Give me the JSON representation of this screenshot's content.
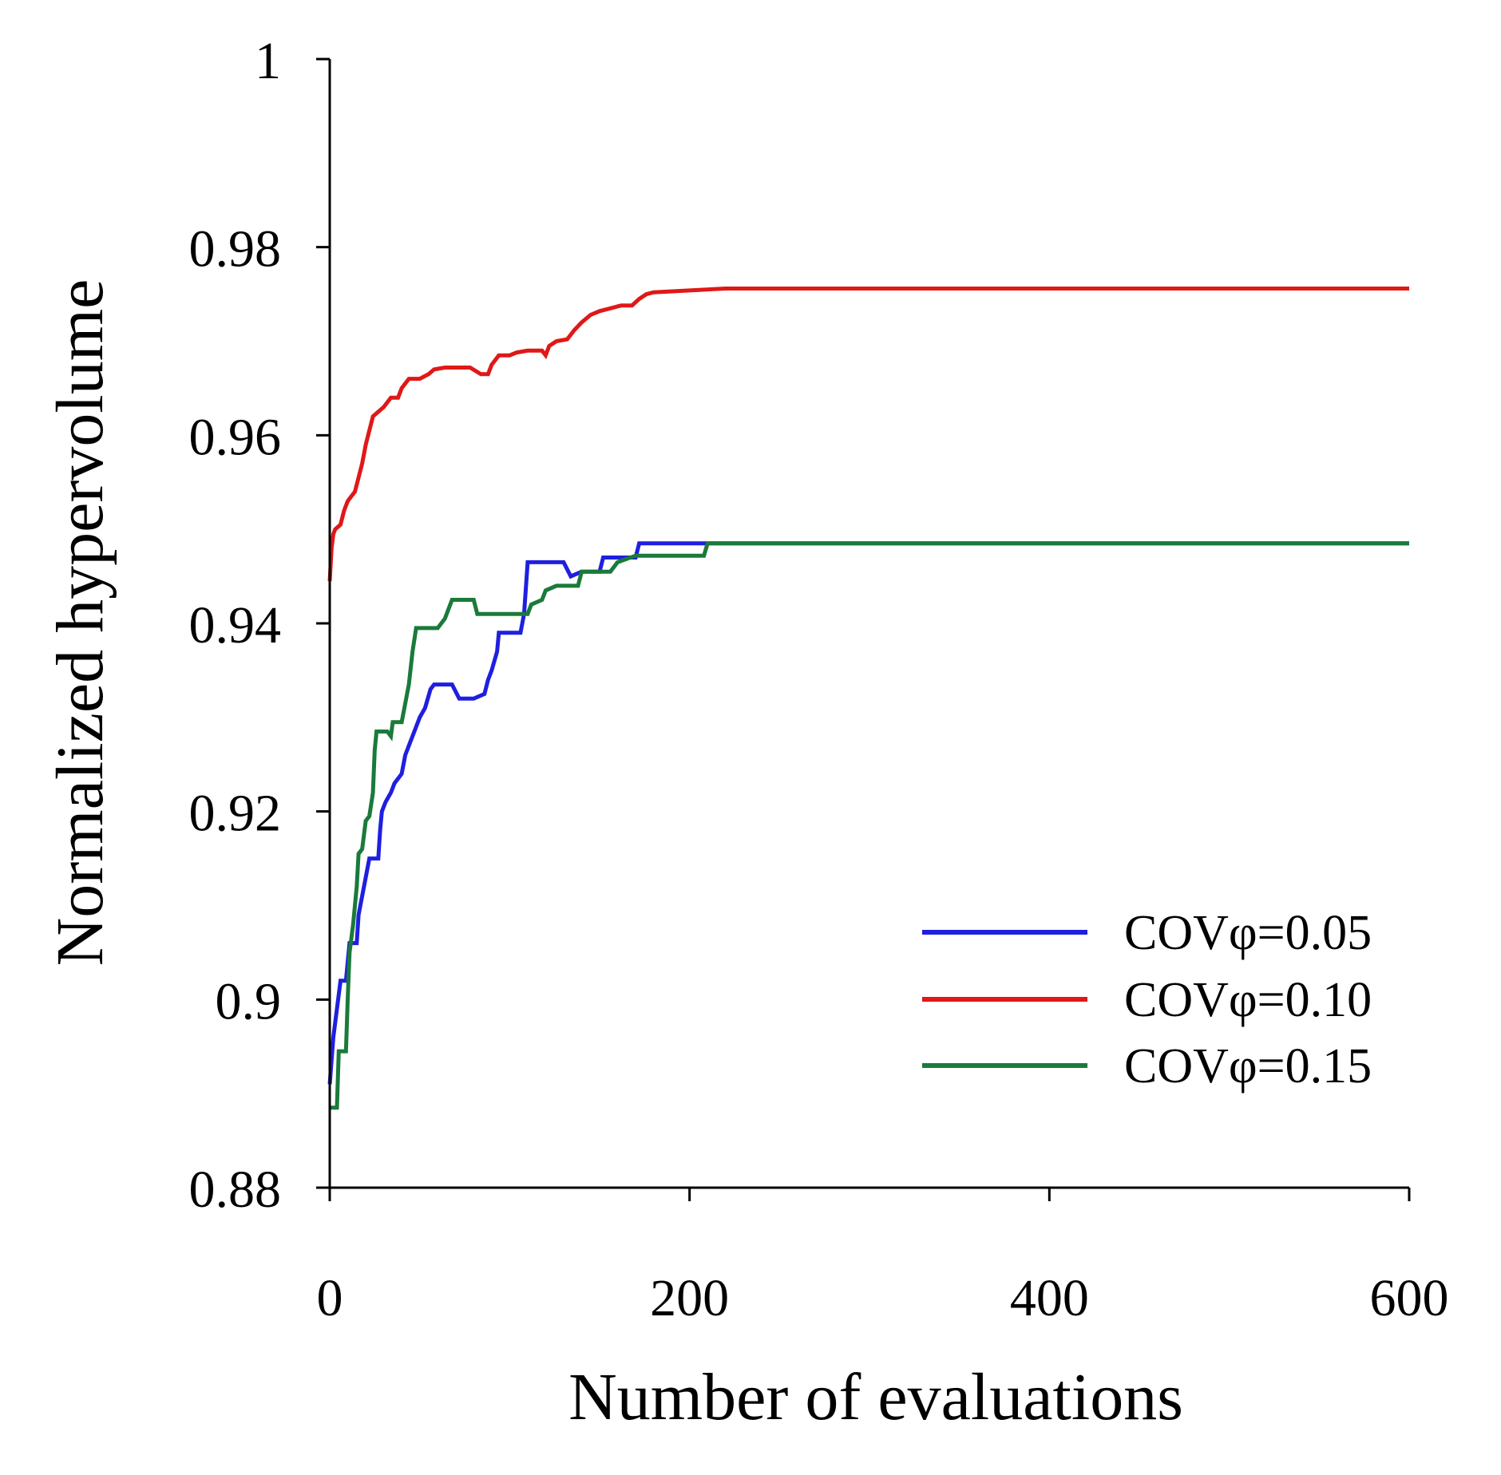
{
  "chart_data": {
    "type": "line",
    "title": "",
    "xlabel": "Number of evaluations",
    "ylabel": "Normalized hypervolume",
    "xlim": [
      0,
      600
    ],
    "ylim": [
      0.88,
      1.0
    ],
    "xticks": [
      0,
      200,
      400,
      600
    ],
    "xtick_labels": [
      "0",
      "200",
      "400",
      "600"
    ],
    "yticks": [
      0.88,
      0.9,
      0.92,
      0.94,
      0.96,
      0.98,
      1.0
    ],
    "ytick_labels": [
      "0.88",
      "0.9",
      "0.92",
      "0.94",
      "0.96",
      "0.98",
      "1"
    ],
    "grid": false,
    "legend_position": "lower-right",
    "series": [
      {
        "name": "COVφ=0.05",
        "color": "#1f1fe0",
        "points": [
          [
            0,
            0.891
          ],
          [
            2,
            0.896
          ],
          [
            4,
            0.899
          ],
          [
            6,
            0.902
          ],
          [
            9,
            0.902
          ],
          [
            10,
            0.904
          ],
          [
            11,
            0.906
          ],
          [
            15,
            0.906
          ],
          [
            16,
            0.909
          ],
          [
            18,
            0.911
          ],
          [
            20,
            0.913
          ],
          [
            22,
            0.915
          ],
          [
            27,
            0.915
          ],
          [
            28,
            0.918
          ],
          [
            29,
            0.92
          ],
          [
            31,
            0.921
          ],
          [
            34,
            0.922
          ],
          [
            36,
            0.923
          ],
          [
            40,
            0.924
          ],
          [
            42,
            0.926
          ],
          [
            44,
            0.927
          ],
          [
            46,
            0.928
          ],
          [
            48,
            0.929
          ],
          [
            50,
            0.93
          ],
          [
            53,
            0.931
          ],
          [
            56,
            0.933
          ],
          [
            58,
            0.9335
          ],
          [
            68,
            0.9335
          ],
          [
            72,
            0.932
          ],
          [
            80,
            0.932
          ],
          [
            86,
            0.9325
          ],
          [
            88,
            0.934
          ],
          [
            90,
            0.935
          ],
          [
            93,
            0.937
          ],
          [
            94,
            0.939
          ],
          [
            106,
            0.939
          ],
          [
            108,
            0.941
          ],
          [
            110,
            0.9465
          ],
          [
            120,
            0.9465
          ],
          [
            130,
            0.9465
          ],
          [
            134,
            0.945
          ],
          [
            140,
            0.9455
          ],
          [
            150,
            0.9455
          ],
          [
            152,
            0.947
          ],
          [
            160,
            0.947
          ],
          [
            170,
            0.947
          ],
          [
            172,
            0.9485
          ],
          [
            600,
            0.9485
          ]
        ]
      },
      {
        "name": "COVφ=0.10",
        "color": "#e01818",
        "points": [
          [
            0,
            0.9445
          ],
          [
            1,
            0.948
          ],
          [
            2,
            0.9495
          ],
          [
            3,
            0.95
          ],
          [
            6,
            0.9505
          ],
          [
            8,
            0.952
          ],
          [
            10,
            0.953
          ],
          [
            12,
            0.9535
          ],
          [
            14,
            0.954
          ],
          [
            16,
            0.9555
          ],
          [
            18,
            0.957
          ],
          [
            20,
            0.959
          ],
          [
            22,
            0.9605
          ],
          [
            24,
            0.962
          ],
          [
            27,
            0.9625
          ],
          [
            30,
            0.963
          ],
          [
            34,
            0.964
          ],
          [
            38,
            0.964
          ],
          [
            40,
            0.965
          ],
          [
            44,
            0.966
          ],
          [
            50,
            0.966
          ],
          [
            55,
            0.9665
          ],
          [
            58,
            0.967
          ],
          [
            64,
            0.9672
          ],
          [
            70,
            0.9672
          ],
          [
            78,
            0.9672
          ],
          [
            84,
            0.9665
          ],
          [
            88,
            0.9665
          ],
          [
            90,
            0.9675
          ],
          [
            94,
            0.9685
          ],
          [
            100,
            0.9685
          ],
          [
            104,
            0.9688
          ],
          [
            110,
            0.969
          ],
          [
            118,
            0.969
          ],
          [
            120,
            0.9685
          ],
          [
            122,
            0.9695
          ],
          [
            126,
            0.97
          ],
          [
            132,
            0.9702
          ],
          [
            136,
            0.9712
          ],
          [
            140,
            0.972
          ],
          [
            145,
            0.9728
          ],
          [
            150,
            0.9732
          ],
          [
            156,
            0.9735
          ],
          [
            162,
            0.9738
          ],
          [
            168,
            0.9738
          ],
          [
            172,
            0.9745
          ],
          [
            176,
            0.975
          ],
          [
            180,
            0.9752
          ],
          [
            200,
            0.9754
          ],
          [
            220,
            0.9756
          ],
          [
            260,
            0.9756
          ],
          [
            600,
            0.9756
          ]
        ]
      },
      {
        "name": "COVφ=0.15",
        "color": "#1a7a3a",
        "points": [
          [
            0,
            0.8885
          ],
          [
            4,
            0.8885
          ],
          [
            5,
            0.8945
          ],
          [
            9,
            0.8945
          ],
          [
            10,
            0.9
          ],
          [
            11,
            0.905
          ],
          [
            13,
            0.908
          ],
          [
            15,
            0.912
          ],
          [
            16,
            0.9155
          ],
          [
            18,
            0.916
          ],
          [
            20,
            0.919
          ],
          [
            22,
            0.9195
          ],
          [
            24,
            0.922
          ],
          [
            25,
            0.9265
          ],
          [
            26,
            0.9285
          ],
          [
            32,
            0.9285
          ],
          [
            34,
            0.928
          ],
          [
            35,
            0.9295
          ],
          [
            40,
            0.9295
          ],
          [
            42,
            0.9315
          ],
          [
            44,
            0.9335
          ],
          [
            46,
            0.937
          ],
          [
            48,
            0.9395
          ],
          [
            60,
            0.9395
          ],
          [
            64,
            0.9405
          ],
          [
            66,
            0.9415
          ],
          [
            68,
            0.9425
          ],
          [
            74,
            0.9425
          ],
          [
            80,
            0.9425
          ],
          [
            82,
            0.941
          ],
          [
            100,
            0.941
          ],
          [
            110,
            0.941
          ],
          [
            112,
            0.942
          ],
          [
            118,
            0.9425
          ],
          [
            120,
            0.9435
          ],
          [
            126,
            0.944
          ],
          [
            138,
            0.944
          ],
          [
            140,
            0.9455
          ],
          [
            156,
            0.9455
          ],
          [
            160,
            0.9465
          ],
          [
            170,
            0.9472
          ],
          [
            200,
            0.9472
          ],
          [
            208,
            0.9472
          ],
          [
            210,
            0.9485
          ],
          [
            600,
            0.9485
          ]
        ]
      }
    ]
  }
}
